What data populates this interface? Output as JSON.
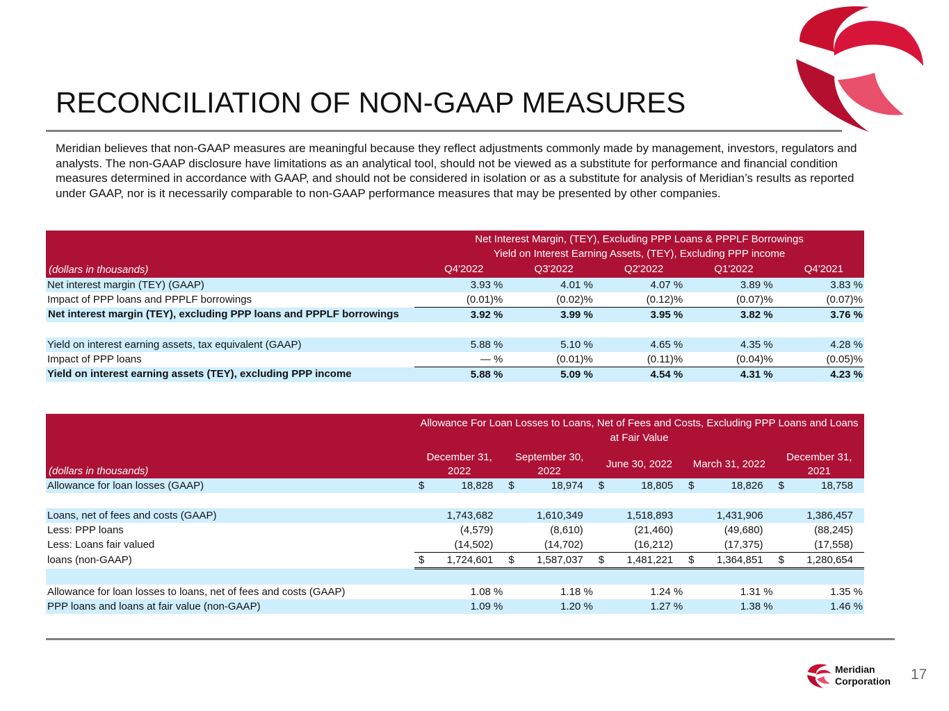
{
  "title": "RECONCILIATION OF NON-GAAP MEASURES",
  "intro": "Meridian believes that non-GAAP measures are meaningful because they reflect adjustments commonly made by management, investors, regulators and analysts. The non-GAAP disclosure have limitations as an analytical tool, should not be viewed as a substitute for performance and financial condition measures determined in accordance with GAAP, and should not be considered in isolation or as a substitute for analysis of Meridian’s results as reported under GAAP, nor is it necessarily comparable to non-GAAP performance measures that may be presented by other companies.",
  "table1": {
    "heading": [
      "Net Interest Margin, (TEY), Excluding PPP Loans & PPPLF Borrowings",
      "Yield on Interest Earning Assets, (TEY), Excluding PPP income"
    ],
    "units": "(dollars in thousands)",
    "columns": [
      "Q4'2022",
      "Q3'2022",
      "Q2'2022",
      "Q1'2022",
      "Q4'2021"
    ],
    "groups": [
      [
        {
          "label": "Net interest margin (TEY) (GAAP)",
          "cells": [
            "3.93 %",
            "4.01 %",
            "4.07 %",
            "3.89 %",
            "3.83 %"
          ]
        },
        {
          "label": "Impact of PPP loans and PPPLF borrowings",
          "cells": [
            "(0.01)%",
            "(0.02)%",
            "(0.12)%",
            "(0.07)%",
            "(0.07)%"
          ]
        },
        {
          "label": "Net interest margin (TEY), excluding PPP loans and PPPLF borrowings",
          "cells": [
            "3.92 %",
            "3.99 %",
            "3.95 %",
            "3.82 %",
            "3.76 %"
          ]
        }
      ],
      [
        {
          "label": "Yield on interest earning assets, tax equivalent (GAAP)",
          "cells": [
            "5.88 %",
            "5.10 %",
            "4.65 %",
            "4.35 %",
            "4.28 %"
          ]
        },
        {
          "label": "Impact of PPP loans",
          "cells": [
            "— %",
            "(0.01)%",
            "(0.11)%",
            "(0.04)%",
            "(0.05)%"
          ]
        },
        {
          "label": "Yield on interest earning assets (TEY), excluding PPP income",
          "cells": [
            "5.88 %",
            "5.09 %",
            "4.54 %",
            "4.31 %",
            "4.23 %"
          ]
        }
      ]
    ]
  },
  "table2": {
    "heading": "Allowance For Loan Losses to Loans, Net of Fees and Costs, Excluding PPP Loans and Loans at Fair Value",
    "units": "(dollars in thousands)",
    "columns": [
      "December 31, 2022",
      "September 30, 2022",
      "June 30, 2022",
      "March 31, 2022",
      "December 31, 2021"
    ],
    "currency": "$",
    "groups": [
      [
        {
          "label": "Allowance for loan losses (GAAP)",
          "cells": [
            "18,828",
            "18,974",
            "18,805",
            "18,826",
            "18,758"
          ]
        }
      ],
      [
        {
          "label": "Loans, net of fees and costs (GAAP)",
          "cells": [
            "1,743,682",
            "1,610,349",
            "1,518,893",
            "1,431,906",
            "1,386,457"
          ]
        },
        {
          "label": "Less: PPP loans",
          "cells": [
            "(4,579)",
            "(8,610)",
            "(21,460)",
            "(49,680)",
            "(88,245)"
          ]
        },
        {
          "label": "Less: Loans fair valued",
          "cells": [
            "(14,502)",
            "(14,702)",
            "(16,212)",
            "(17,375)",
            "(17,558)"
          ]
        },
        {
          "label": "loans (non-GAAP)",
          "cells": [
            "1,724,601",
            "1,587,037",
            "1,481,221",
            "1,364,851",
            "1,280,654"
          ]
        }
      ],
      [
        {
          "label": "Allowance for loan losses to loans, net of fees and costs (GAAP)",
          "cells": [
            "1.08 %",
            "1.18 %",
            "1.24 %",
            "1.31 %",
            "1.35 %"
          ]
        },
        {
          "label": "PPP loans and loans at fair value (non-GAAP)",
          "cells": [
            "1.09 %",
            "1.20 %",
            "1.27 %",
            "1.38 %",
            "1.46 %"
          ]
        }
      ]
    ]
  },
  "footer": {
    "company": [
      "Meridian",
      "Corporation"
    ],
    "page": "17"
  }
}
